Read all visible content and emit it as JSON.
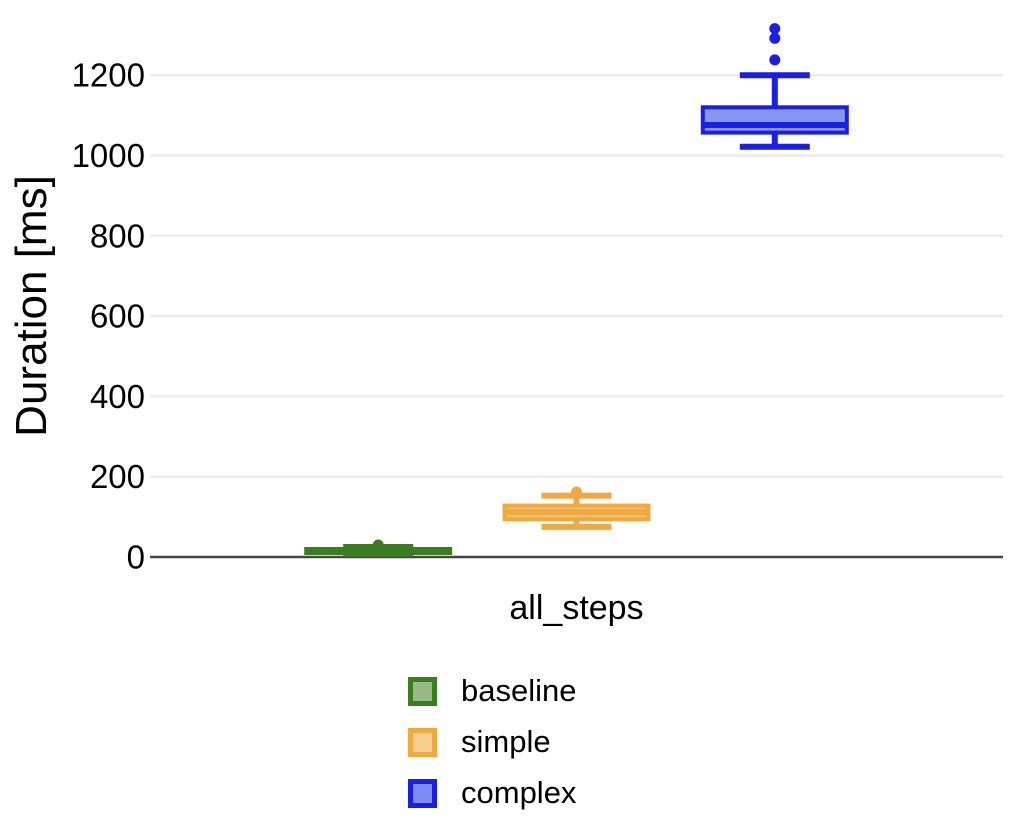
{
  "chart_data": {
    "type": "boxplot",
    "title": "",
    "xlabel": "all_steps",
    "ylabel": "Duration [ms]",
    "categories": [
      "all_steps"
    ],
    "yticks": [
      0,
      200,
      400,
      600,
      800,
      1000,
      1200
    ],
    "ylim": [
      0,
      1390
    ],
    "grid": true,
    "legend_position": "bottom-center",
    "axis_line_color": "#454545",
    "gridline_color": "#ececec",
    "series": [
      {
        "name": "baseline",
        "stroke": "#3c7d21",
        "box_fill": "#8fb573",
        "legend_fill": "#9aba85",
        "box": {
          "min": 8,
          "q1": 10,
          "median": 15,
          "q3": 20,
          "max": 25,
          "outliers": [
            30
          ]
        }
      },
      {
        "name": "simple",
        "stroke": "#f0a843",
        "box_fill": "#f6c06c",
        "legend_fill": "#f7d093",
        "box": {
          "min": 75,
          "q1": 94,
          "median": 112,
          "q3": 128,
          "max": 153,
          "outliers": [
            162
          ]
        }
      },
      {
        "name": "complex",
        "stroke": "#1a1fe8",
        "box_fill": "#8a97f0",
        "legend_fill": "#7b8df5",
        "box": {
          "min": 1022,
          "q1": 1057,
          "median": 1076,
          "q3": 1120,
          "max": 1200,
          "outliers": [
            1238,
            1292,
            1316
          ]
        }
      }
    ]
  }
}
